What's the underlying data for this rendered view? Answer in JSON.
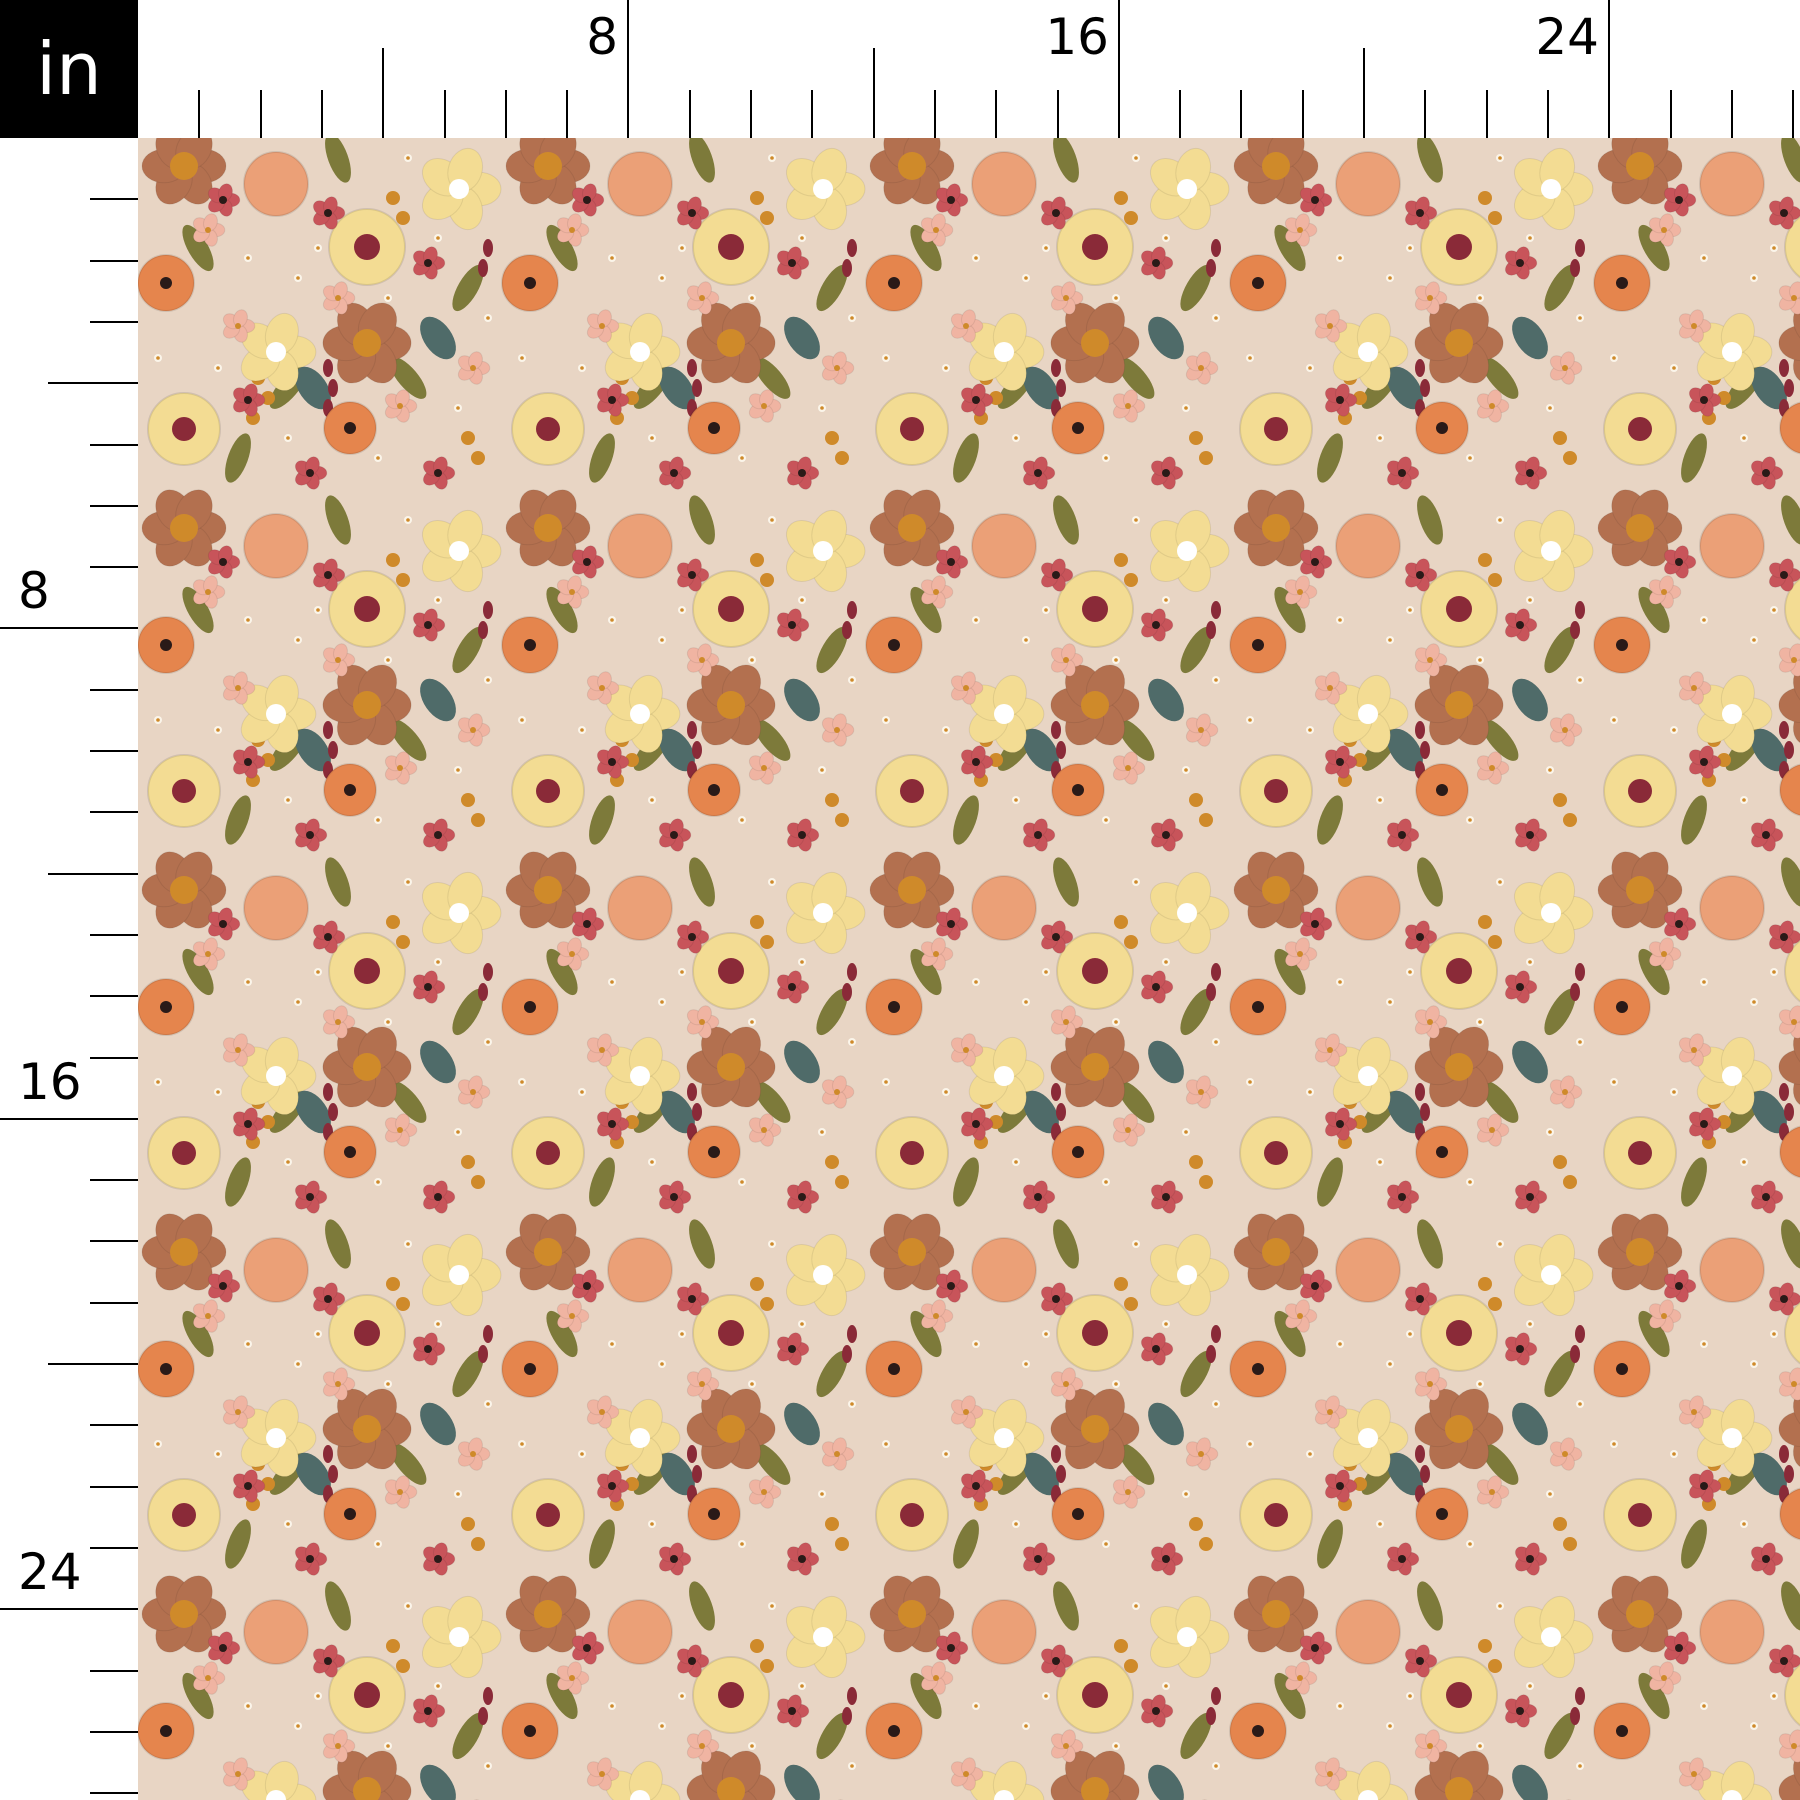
{
  "ruler": {
    "unit": "in",
    "top_labels": [
      "8",
      "16",
      "24"
    ],
    "left_labels": [
      "8",
      "16",
      "24"
    ],
    "label_every_inches": 8,
    "major_tick_every_inches": 4,
    "visible_inches": 27
  },
  "fabric": {
    "pattern": "embroidered wildflower floral",
    "colors": {
      "background": "#e8d5c4",
      "brown_poppy": "#b3704f",
      "peach": "#eba077",
      "butter_yellow": "#f3dc93",
      "orange": "#e5854d",
      "coral_red": "#c8545a",
      "burgundy": "#8a2a38",
      "mustard": "#cf8a2a",
      "teal": "#4f6b69",
      "olive": "#7d7a3a",
      "blush": "#f0b4a2"
    }
  }
}
